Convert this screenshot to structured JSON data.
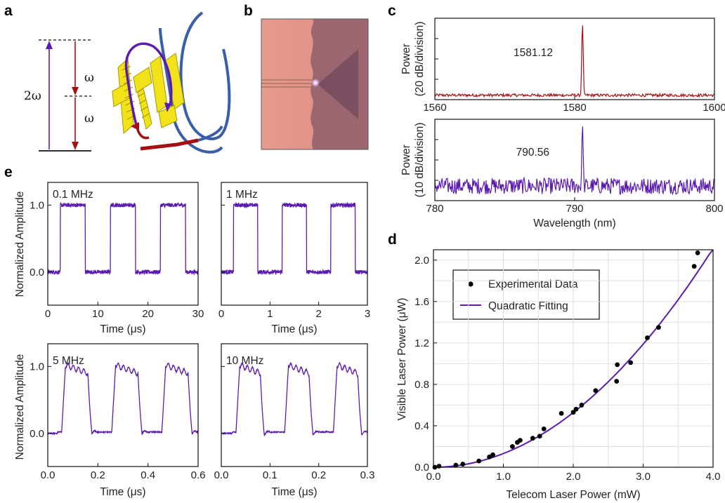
{
  "panels": {
    "a": "a",
    "b": "b",
    "c": "c",
    "d": "d",
    "e": "e"
  },
  "colors": {
    "red": "#a30f14",
    "purple": "#5b1bb0",
    "yellow": "#f2e21a",
    "blue": "#3a5fa8",
    "marker": "#000000"
  },
  "panel_a": {
    "label_2w": "2ω",
    "label_w_top": "ω",
    "label_w_bottom": "ω"
  },
  "panel_b": {
    "description_icons": [
      "micro-ring-chip",
      "laser-spot"
    ]
  },
  "chart_data": [
    {
      "id": "c_top",
      "type": "line",
      "color_key": "red",
      "ylabel_line1": "Power",
      "ylabel_line2": "(20 dB/division)",
      "xlim": [
        1560,
        1600
      ],
      "xticks": [
        1560,
        1580,
        1600
      ],
      "peak_x": 1581.12,
      "peak_label": "1581.12",
      "noise_floor": 0.09,
      "peak_height": 0.93
    },
    {
      "id": "c_bottom",
      "type": "line",
      "color_key": "purple",
      "ylabel_line1": "Power",
      "ylabel_line2": "(10 dB/division)",
      "xlim": [
        780,
        800
      ],
      "xticks": [
        780,
        790,
        800
      ],
      "xlabel": "Wavelength (nm)",
      "peak_x": 790.56,
      "peak_label": "790.56",
      "noise_floor": 0.2,
      "peak_height": 0.93
    },
    {
      "id": "d",
      "type": "scatter",
      "xlabel": "Telecom Laser Power (mW)",
      "ylabel": "Visible Laser Power (μW)",
      "xlim": [
        0,
        4.0
      ],
      "ylim": [
        0,
        2.1
      ],
      "xticks": [
        0.0,
        1.0,
        2.0,
        3.0,
        4.0
      ],
      "xtick_labels": [
        "0.0",
        "1.0",
        "2.0",
        "3.0",
        "4.0"
      ],
      "yticks": [
        0.0,
        0.4,
        0.8,
        1.2,
        1.6,
        2.0
      ],
      "ytick_labels": [
        "0.0",
        "0.4",
        "0.8",
        "1.2",
        "1.6",
        "2.0"
      ],
      "legend": [
        "Experimental Data",
        "Quadratic Fitting"
      ],
      "points": [
        [
          0.02,
          0.0
        ],
        [
          0.08,
          0.01
        ],
        [
          0.32,
          0.02
        ],
        [
          0.42,
          0.03
        ],
        [
          0.65,
          0.06
        ],
        [
          0.8,
          0.1
        ],
        [
          0.85,
          0.12
        ],
        [
          1.13,
          0.2
        ],
        [
          1.2,
          0.24
        ],
        [
          1.24,
          0.26
        ],
        [
          1.42,
          0.28
        ],
        [
          1.52,
          0.3
        ],
        [
          1.58,
          0.37
        ],
        [
          1.83,
          0.52
        ],
        [
          2.0,
          0.53
        ],
        [
          2.04,
          0.56
        ],
        [
          2.12,
          0.6
        ],
        [
          2.32,
          0.74
        ],
        [
          2.62,
          0.83
        ],
        [
          2.63,
          0.99
        ],
        [
          2.82,
          1.01
        ],
        [
          3.06,
          1.25
        ],
        [
          3.22,
          1.35
        ],
        [
          3.73,
          1.94
        ],
        [
          3.78,
          2.07
        ]
      ],
      "fit_coef": 0.132
    },
    {
      "id": "e1",
      "type": "line",
      "freq_label": "0.1 MHz",
      "xlim": [
        0,
        30
      ],
      "xticks": [
        0,
        10,
        20,
        30
      ],
      "xlabel": "Time (μs)",
      "ylabel": "Normalized Amplitude",
      "yticks": [
        0.0,
        1.0
      ],
      "ytick_labels": [
        "0.0",
        "1.0"
      ],
      "period": 10,
      "rise": 2.5,
      "high_len": 5,
      "shape": "square"
    },
    {
      "id": "e2",
      "type": "line",
      "freq_label": "1 MHz",
      "xlim": [
        0,
        3
      ],
      "xticks": [
        0,
        1,
        2,
        3
      ],
      "xlabel": "Time (μs)",
      "period": 1,
      "rise": 0.25,
      "high_len": 0.5,
      "shape": "square"
    },
    {
      "id": "e3",
      "type": "line",
      "freq_label": "5 MHz",
      "xlim": [
        0.0,
        0.6
      ],
      "xticks": [
        0.0,
        0.2,
        0.4,
        0.6
      ],
      "xtick_labels": [
        "0.0",
        "0.2",
        "0.4",
        "0.6"
      ],
      "xlabel": "Time (μs)",
      "ylabel": "Normalized Amplitude",
      "yticks": [
        0.0,
        1.0
      ],
      "ytick_labels": [
        "0.0",
        "1.0"
      ],
      "period": 0.2,
      "rise": 0.055,
      "high_len": 0.105,
      "shape": "rounded"
    },
    {
      "id": "e4",
      "type": "line",
      "freq_label": "10 MHz",
      "xlim": [
        0.0,
        0.3
      ],
      "xticks": [
        0.0,
        0.1,
        0.2,
        0.3
      ],
      "xtick_labels": [
        "0.0",
        "0.1",
        "0.2",
        "0.3"
      ],
      "xlabel": "Time (μs)",
      "period": 0.1,
      "rise": 0.03,
      "high_len": 0.05,
      "shape": "rounded"
    }
  ]
}
